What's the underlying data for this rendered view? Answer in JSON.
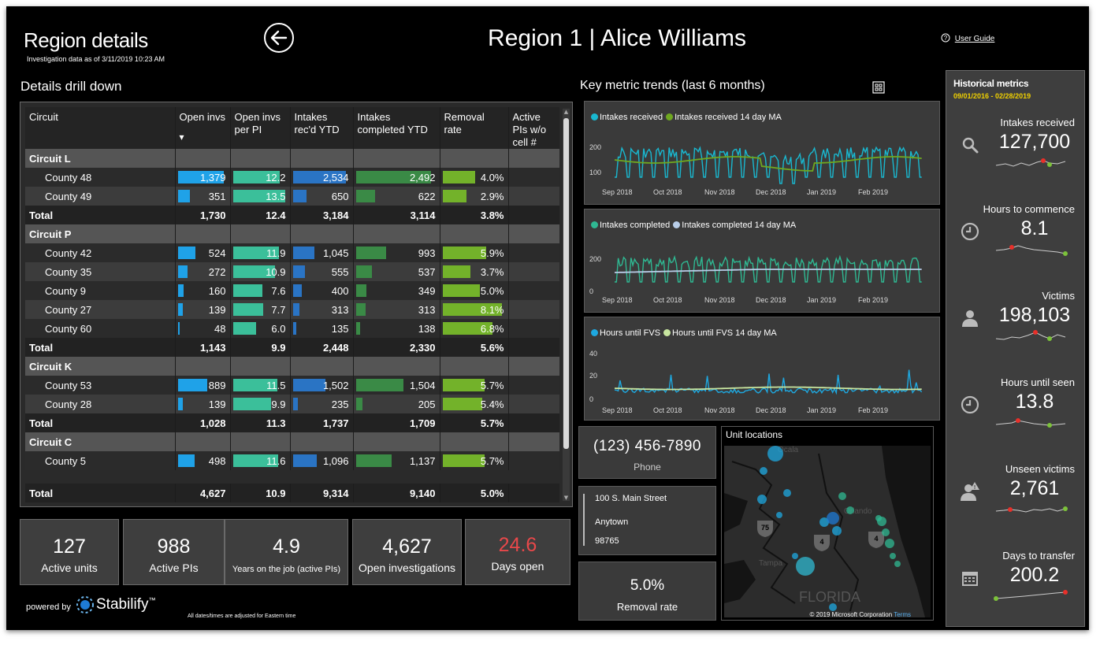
{
  "header": {
    "title": "Region details",
    "subtitle": "Investigation data as of 3/11/2019 10:23 AM",
    "region_title": "Region 1 | Alice Williams",
    "user_guide": "User Guide"
  },
  "drill": {
    "title": "Details drill down",
    "columns": [
      "Circuit",
      "Open invs",
      "Open invs per PI",
      "Intakes rec'd YTD",
      "Intakes completed YTD",
      "Removal rate",
      "Active PIs w/o cell #"
    ],
    "sort_indicator": "▾",
    "rows": [
      {
        "type": "circuit",
        "name": "Circuit L"
      },
      {
        "type": "county",
        "name": "County 48",
        "open": "1,379",
        "perpi": "12.2",
        "rec": "2,534",
        "comp": "2,492",
        "rem": "4.0%",
        "b": [
          1.0,
          0.9,
          0.95,
          0.95,
          0.55
        ]
      },
      {
        "type": "county",
        "name": "County 49",
        "open": "351",
        "perpi": "13.5",
        "rec": "650",
        "comp": "622",
        "rem": "2.9%",
        "b": [
          0.25,
          1.0,
          0.24,
          0.24,
          0.4
        ]
      },
      {
        "type": "total",
        "name": "Total",
        "open": "1,730",
        "perpi": "12.4",
        "rec": "3,184",
        "comp": "3,114",
        "rem": "3.8%"
      },
      {
        "type": "circuit",
        "name": "Circuit P"
      },
      {
        "type": "county",
        "name": "County 42",
        "open": "524",
        "perpi": "11.9",
        "rec": "1,045",
        "comp": "993",
        "rem": "5.9%",
        "b": [
          0.38,
          0.88,
          0.39,
          0.38,
          0.73
        ]
      },
      {
        "type": "county",
        "name": "County 35",
        "open": "272",
        "perpi": "10.9",
        "rec": "555",
        "comp": "537",
        "rem": "3.7%",
        "b": [
          0.2,
          0.8,
          0.21,
          0.2,
          0.46
        ]
      },
      {
        "type": "county",
        "name": "County 9",
        "open": "160",
        "perpi": "7.6",
        "rec": "400",
        "comp": "349",
        "rem": "5.0%",
        "b": [
          0.12,
          0.56,
          0.15,
          0.13,
          0.62
        ]
      },
      {
        "type": "county",
        "name": "County 27",
        "open": "139",
        "perpi": "7.7",
        "rec": "313",
        "comp": "313",
        "rem": "8.1%",
        "b": [
          0.1,
          0.57,
          0.12,
          0.12,
          1.0
        ]
      },
      {
        "type": "county",
        "name": "County 60",
        "open": "48",
        "perpi": "6.0",
        "rec": "135",
        "comp": "138",
        "rem": "6.8%",
        "b": [
          0.04,
          0.44,
          0.05,
          0.05,
          0.84
        ]
      },
      {
        "type": "total",
        "name": "Total",
        "open": "1,143",
        "perpi": "9.9",
        "rec": "2,448",
        "comp": "2,330",
        "rem": "5.6%"
      },
      {
        "type": "circuit",
        "name": "Circuit K"
      },
      {
        "type": "county",
        "name": "County 53",
        "open": "889",
        "perpi": "11.5",
        "rec": "1,502",
        "comp": "1,504",
        "rem": "5.7%",
        "b": [
          0.64,
          0.85,
          0.59,
          0.6,
          0.7
        ]
      },
      {
        "type": "county",
        "name": "County 28",
        "open": "139",
        "perpi": "9.9",
        "rec": "235",
        "comp": "205",
        "rem": "5.4%",
        "b": [
          0.1,
          0.73,
          0.09,
          0.08,
          0.67
        ]
      },
      {
        "type": "total",
        "name": "Total",
        "open": "1,028",
        "perpi": "11.3",
        "rec": "1,737",
        "comp": "1,709",
        "rem": "5.7%"
      },
      {
        "type": "circuit",
        "name": "Circuit C"
      },
      {
        "type": "county",
        "name": "County 5",
        "open": "498",
        "perpi": "11.6",
        "rec": "1,096",
        "comp": "1,137",
        "rem": "5.7%",
        "b": [
          0.36,
          0.86,
          0.43,
          0.45,
          0.7
        ]
      }
    ],
    "grand_total": {
      "name": "Total",
      "open": "4,627",
      "perpi": "10.9",
      "rec": "9,314",
      "comp": "9,140",
      "rem": "5.0%"
    }
  },
  "kpis": [
    {
      "value": "127",
      "label": "Active units"
    },
    {
      "value": "988",
      "label": "Active PIs"
    },
    {
      "value": "4.9",
      "label": "Years on the job (active PIs)"
    },
    {
      "value": "4,627",
      "label": "Open investigations"
    },
    {
      "value": "24.6",
      "label": "Days open",
      "color": "#e8484a"
    }
  ],
  "trends": {
    "title": "Key metric trends (last 6 months)",
    "months": [
      "Sep 2018",
      "Oct 2018",
      "Nov 2018",
      "Dec 2018",
      "Jan 2019",
      "Feb 2019"
    ],
    "charts": [
      {
        "legend": [
          "Intakes received",
          "Intakes received 14 day MA"
        ],
        "colors": [
          "#19b8d0",
          "#6fa820"
        ],
        "ticks": [
          "200",
          "100"
        ]
      },
      {
        "legend": [
          "Intakes completed",
          "Intakes completed 14 day MA"
        ],
        "colors": [
          "#2fb892",
          "#b8cde8"
        ],
        "ticks": [
          "200",
          "0"
        ]
      },
      {
        "legend": [
          "Hours until FVS",
          "Hours until FVS 14 day MA"
        ],
        "colors": [
          "#1ea8e0",
          "#c8e6a0"
        ],
        "ticks": [
          "40",
          "20",
          "0"
        ]
      }
    ]
  },
  "contact": {
    "phone": "(123) 456-7890",
    "phone_label": "Phone",
    "street": "100 S. Main Street",
    "city": "Anytown",
    "zip": "98765"
  },
  "removal": {
    "value": "5.0%",
    "label": "Removal rate"
  },
  "map": {
    "title": "Unit locations",
    "labels": [
      "Ocala",
      "Orlando",
      "Tampa",
      "FLORIDA"
    ],
    "shields": [
      "75",
      "4",
      "4"
    ],
    "copyright": "© 2019 Microsoft Corporation",
    "terms": "Terms"
  },
  "historical": {
    "title": "Historical metrics",
    "range": "09/01/2016 - 02/28/2019",
    "metrics": [
      {
        "label": "Intakes received",
        "value": "127,700",
        "icon": "search-icon"
      },
      {
        "label": "Hours to commence",
        "value": "8.1",
        "icon": "clock-icon"
      },
      {
        "label": "Victims",
        "value": "198,103",
        "icon": "person-icon"
      },
      {
        "label": "Hours until seen",
        "value": "13.8",
        "icon": "clock-icon"
      },
      {
        "label": "Unseen victims",
        "value": "2,761",
        "icon": "person-alert-icon"
      },
      {
        "label": "Days to transfer",
        "value": "200.2",
        "icon": "calendar-icon"
      }
    ]
  },
  "footer": {
    "powered_by": "powered by",
    "brand": "Stabilify",
    "tm": "™",
    "note": "All dates/times are adjusted for Eastern time"
  },
  "colors": {
    "open": "#1fa2e8",
    "perpi": "#3bbf9a",
    "rec": "#2a74c4",
    "comp": "#3a8a46",
    "rem": "#73b22a",
    "range": "#f0d000",
    "negative": "#e8484a"
  }
}
